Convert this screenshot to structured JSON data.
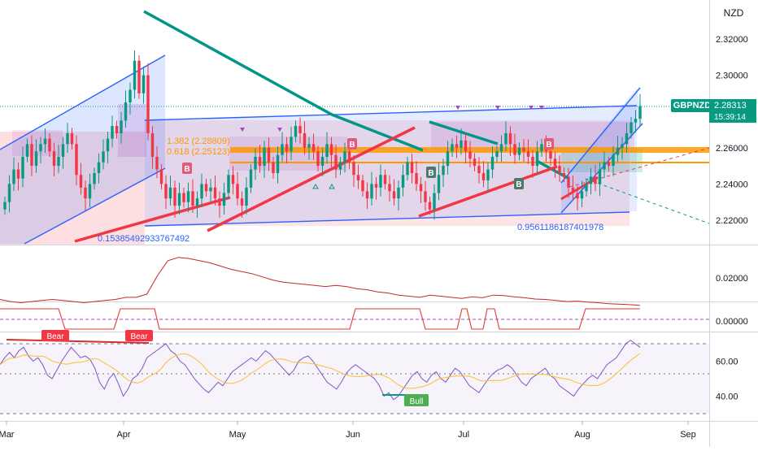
{
  "instrument": {
    "currency": "NZD",
    "symbol": "GBPNZD",
    "last_price": "2.28313",
    "countdown": "15:39:14"
  },
  "axes": {
    "price_ticks": [
      "2.32000",
      "2.30000",
      "2.28000",
      "2.26000",
      "2.24000",
      "2.22000"
    ],
    "indicator_ticks": [
      "0.02000",
      "0.00000"
    ],
    "rsi_ticks": [
      "60.00",
      "40.00"
    ],
    "months": [
      "Mar",
      "Apr",
      "May",
      "Jun",
      "Jul",
      "Aug",
      "Sep"
    ]
  },
  "annotations": {
    "fib_labels": [
      "1.382 (2.28809)",
      "0.618 (2.25123)"
    ],
    "channel_ratio_left": "0.15385492933767492",
    "channel_ratio_right": "0.9561186187401978",
    "signal_badge": "B",
    "bear_label": "Bear",
    "bull_label": "Bull"
  },
  "colors": {
    "bull": "#089981",
    "bear": "#f23645",
    "channel_blue": "#2962ff",
    "trend_teal": "#009688",
    "fib_orange": "#ff9800",
    "rsi_line": "#7e57c2",
    "rsi_ma": "#fbc02d",
    "indicator_red": "#c62828"
  },
  "chart_data": [
    {
      "type": "candlestick",
      "title": "GBPNZD",
      "x_range": [
        "Mar",
        "Sep"
      ],
      "ylim": [
        2.207,
        2.337
      ],
      "y_ticks": [
        2.32,
        2.3,
        2.28,
        2.26,
        2.24,
        2.22
      ],
      "last_price": 2.28313,
      "key_levels": [
        2.2575,
        2.2512
      ],
      "legend_position": "top-right"
    },
    {
      "type": "line",
      "title": "",
      "ylim": [
        -0.004,
        0.031
      ],
      "y_ticks": [
        0.02,
        0.0
      ]
    },
    {
      "type": "line",
      "title": "",
      "ylim": [
        26,
        76
      ],
      "y_ticks": [
        60.0,
        40.0
      ],
      "band": [
        30,
        70
      ]
    }
  ]
}
